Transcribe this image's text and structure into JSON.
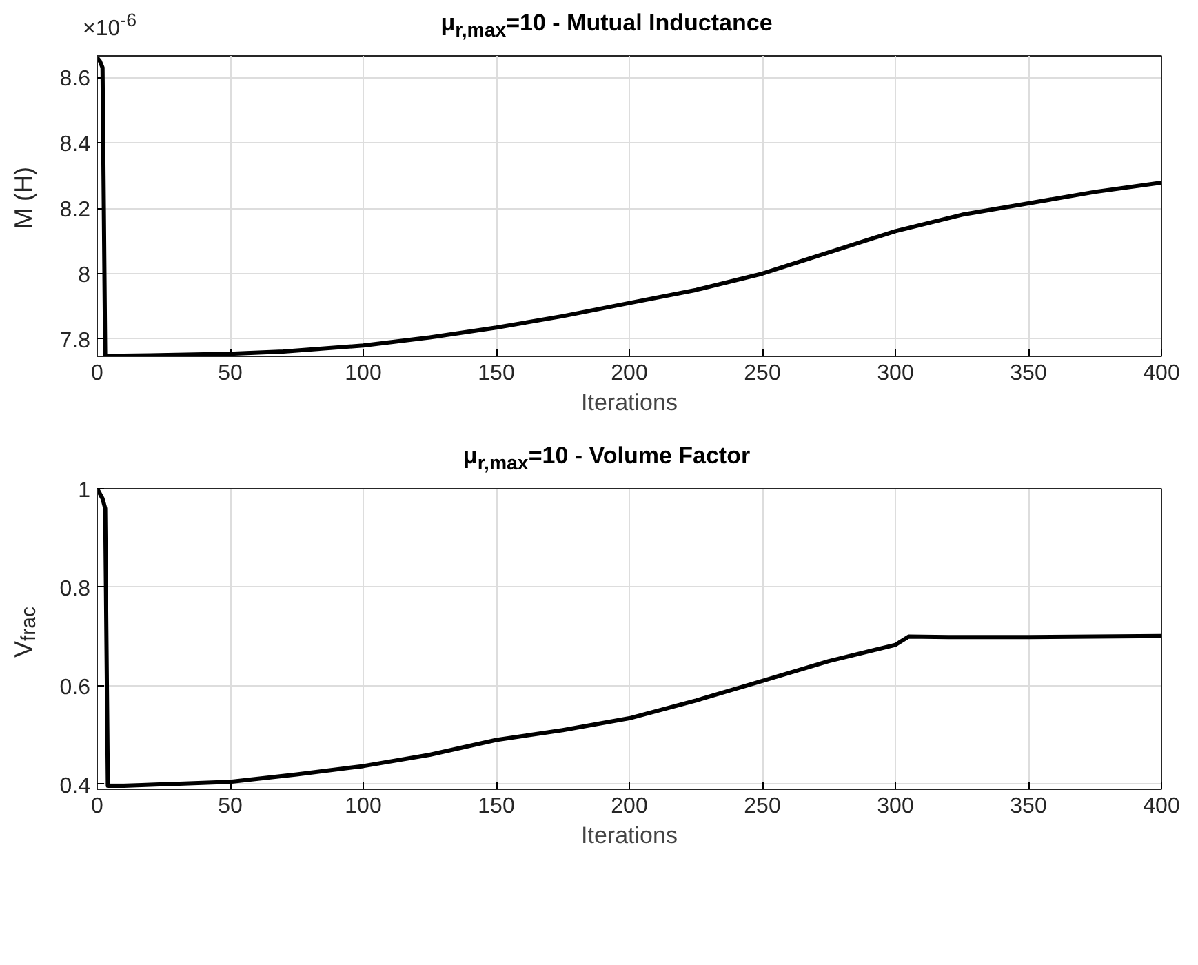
{
  "chart_data": [
    {
      "type": "line",
      "title": "μ$_{r,max}$=10 - Mutual Inductance",
      "xlabel": "Iterations",
      "ylabel": "M (H)",
      "annotations": [
        "×10$^{-6}$"
      ],
      "grid": true,
      "xlim": [
        0,
        400
      ],
      "ylim": [
        7.747,
        8.666
      ],
      "xticks": [
        0,
        50,
        100,
        150,
        200,
        250,
        300,
        350,
        400
      ],
      "yticks": [
        7.8,
        8,
        8.2,
        8.4,
        8.6
      ],
      "series": [
        {
          "color": "#000000",
          "x": [
            0,
            1,
            2,
            3,
            5,
            10,
            20,
            30,
            50,
            70,
            100,
            125,
            150,
            175,
            200,
            225,
            250,
            275,
            300,
            325,
            350,
            375,
            400
          ],
          "values": [
            8.66,
            8.65,
            8.63,
            7.75,
            7.748,
            7.749,
            7.75,
            7.752,
            7.755,
            7.762,
            7.78,
            7.805,
            7.835,
            7.87,
            7.91,
            7.95,
            8.0,
            8.065,
            8.13,
            8.18,
            8.215,
            8.25,
            8.278
          ]
        }
      ]
    },
    {
      "type": "line",
      "title": "μ$_{r,max}$=10 - Volume Factor",
      "xlabel": "Iterations",
      "ylabel": "V$_{frac}$",
      "grid": true,
      "xlim": [
        0,
        400
      ],
      "ylim": [
        0.39,
        1
      ],
      "xticks": [
        0,
        50,
        100,
        150,
        200,
        250,
        300,
        350,
        400
      ],
      "yticks": [
        0.4,
        0.6,
        0.8,
        1
      ],
      "series": [
        {
          "color": "#000000",
          "x": [
            0,
            2,
            3,
            4,
            10,
            25,
            50,
            75,
            100,
            125,
            150,
            175,
            200,
            225,
            250,
            275,
            300,
            305,
            320,
            350,
            400
          ],
          "values": [
            1.0,
            0.98,
            0.96,
            0.397,
            0.397,
            0.4,
            0.405,
            0.42,
            0.437,
            0.46,
            0.49,
            0.51,
            0.534,
            0.57,
            0.61,
            0.65,
            0.683,
            0.7,
            0.699,
            0.699,
            0.701
          ]
        }
      ]
    }
  ]
}
